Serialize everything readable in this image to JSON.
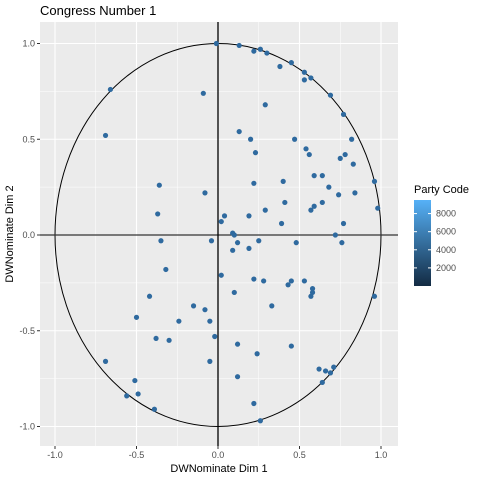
{
  "chart_data": {
    "type": "scatter",
    "title": "Congress Number 1",
    "xlabel": "DWNominate Dim 1",
    "ylabel": "DWNominate Dim 2",
    "xlim": [
      -1.0,
      1.0
    ],
    "ylim": [
      -1.0,
      1.0
    ],
    "x_ticks": [
      -1.0,
      -0.5,
      0.0,
      0.5,
      1.0
    ],
    "y_ticks": [
      -1.0,
      -0.5,
      0.0,
      0.5,
      1.0
    ],
    "x_tick_labels": [
      "-1.0",
      "-0.5",
      "0.0",
      "0.5",
      "1.0"
    ],
    "y_tick_labels": [
      "-1.0",
      "-0.5",
      "0.0",
      "0.5",
      "1.0"
    ],
    "grid": true,
    "reference_lines": {
      "x": 0,
      "y": 0
    },
    "unit_circle": true,
    "colors": {
      "panel_background": "#ebebeb",
      "grid_major": "#ffffff",
      "point": "#2f6a9f",
      "gradient_low": "#132b43",
      "gradient_high": "#56b1f7"
    },
    "legend": {
      "title": "Party Code",
      "placement": "right",
      "type": "colorbar",
      "breaks": [
        2000,
        4000,
        6000,
        8000
      ],
      "labels": [
        "2000",
        "4000",
        "6000",
        "8000"
      ],
      "range": [
        0,
        9500
      ]
    },
    "series": [
      {
        "points": [
          [
            -0.01,
            1.0
          ],
          [
            0.13,
            0.99
          ],
          [
            0.26,
            0.97
          ],
          [
            0.3,
            0.95
          ],
          [
            0.22,
            0.96
          ],
          [
            0.45,
            0.9
          ],
          [
            0.38,
            0.88
          ],
          [
            0.53,
            0.85
          ],
          [
            0.53,
            0.81
          ],
          [
            0.57,
            0.82
          ],
          [
            0.69,
            0.73
          ],
          [
            -0.66,
            0.76
          ],
          [
            -0.09,
            0.74
          ],
          [
            0.29,
            0.68
          ],
          [
            0.77,
            0.63
          ],
          [
            -0.69,
            0.52
          ],
          [
            0.13,
            0.54
          ],
          [
            0.2,
            0.5
          ],
          [
            0.47,
            0.5
          ],
          [
            0.82,
            0.5
          ],
          [
            0.54,
            0.45
          ],
          [
            0.23,
            0.43
          ],
          [
            0.56,
            0.42
          ],
          [
            0.78,
            0.42
          ],
          [
            0.75,
            0.4
          ],
          [
            0.83,
            0.37
          ],
          [
            0.59,
            0.31
          ],
          [
            0.64,
            0.31
          ],
          [
            0.96,
            0.28
          ],
          [
            0.4,
            0.28
          ],
          [
            0.22,
            0.27
          ],
          [
            0.68,
            0.25
          ],
          [
            -0.36,
            0.26
          ],
          [
            0.84,
            0.22
          ],
          [
            0.74,
            0.21
          ],
          [
            -0.08,
            0.22
          ],
          [
            0.98,
            0.14
          ],
          [
            0.41,
            0.17
          ],
          [
            0.64,
            0.17
          ],
          [
            0.59,
            0.15
          ],
          [
            0.57,
            0.13
          ],
          [
            0.29,
            0.13
          ],
          [
            -0.37,
            0.11
          ],
          [
            0.04,
            0.1
          ],
          [
            0.19,
            0.1
          ],
          [
            0.02,
            0.07
          ],
          [
            0.39,
            0.06
          ],
          [
            0.77,
            0.06
          ],
          [
            0.09,
            0.01
          ],
          [
            0.1,
            0.0
          ],
          [
            0.72,
            0.0
          ],
          [
            0.25,
            -0.03
          ],
          [
            0.12,
            -0.04
          ],
          [
            0.48,
            -0.04
          ],
          [
            0.76,
            -0.04
          ],
          [
            -0.04,
            -0.03
          ],
          [
            -0.35,
            -0.03
          ],
          [
            0.19,
            -0.07
          ],
          [
            0.09,
            -0.08
          ],
          [
            -0.32,
            -0.18
          ],
          [
            0.02,
            -0.21
          ],
          [
            0.22,
            -0.23
          ],
          [
            0.28,
            -0.24
          ],
          [
            0.45,
            -0.24
          ],
          [
            0.53,
            -0.24
          ],
          [
            0.43,
            -0.26
          ],
          [
            0.58,
            -0.28
          ],
          [
            0.1,
            -0.3
          ],
          [
            0.58,
            -0.3
          ],
          [
            -0.42,
            -0.32
          ],
          [
            0.57,
            -0.32
          ],
          [
            -0.15,
            -0.37
          ],
          [
            0.33,
            -0.37
          ],
          [
            -0.08,
            -0.39
          ],
          [
            -0.5,
            -0.43
          ],
          [
            -0.24,
            -0.45
          ],
          [
            -0.05,
            -0.45
          ],
          [
            -0.02,
            -0.53
          ],
          [
            -0.38,
            -0.54
          ],
          [
            -0.3,
            -0.55
          ],
          [
            0.12,
            -0.57
          ],
          [
            0.45,
            -0.58
          ],
          [
            0.24,
            -0.62
          ],
          [
            -0.05,
            -0.66
          ],
          [
            -0.69,
            -0.66
          ],
          [
            0.62,
            -0.7
          ],
          [
            0.66,
            -0.71
          ],
          [
            0.71,
            -0.69
          ],
          [
            0.69,
            -0.72
          ],
          [
            0.12,
            -0.74
          ],
          [
            -0.51,
            -0.76
          ],
          [
            0.64,
            -0.77
          ],
          [
            -0.49,
            -0.83
          ],
          [
            -0.56,
            -0.84
          ],
          [
            -0.39,
            -0.91
          ],
          [
            0.22,
            -0.88
          ],
          [
            0.26,
            -0.97
          ],
          [
            0.96,
            -0.32
          ]
        ]
      }
    ]
  }
}
